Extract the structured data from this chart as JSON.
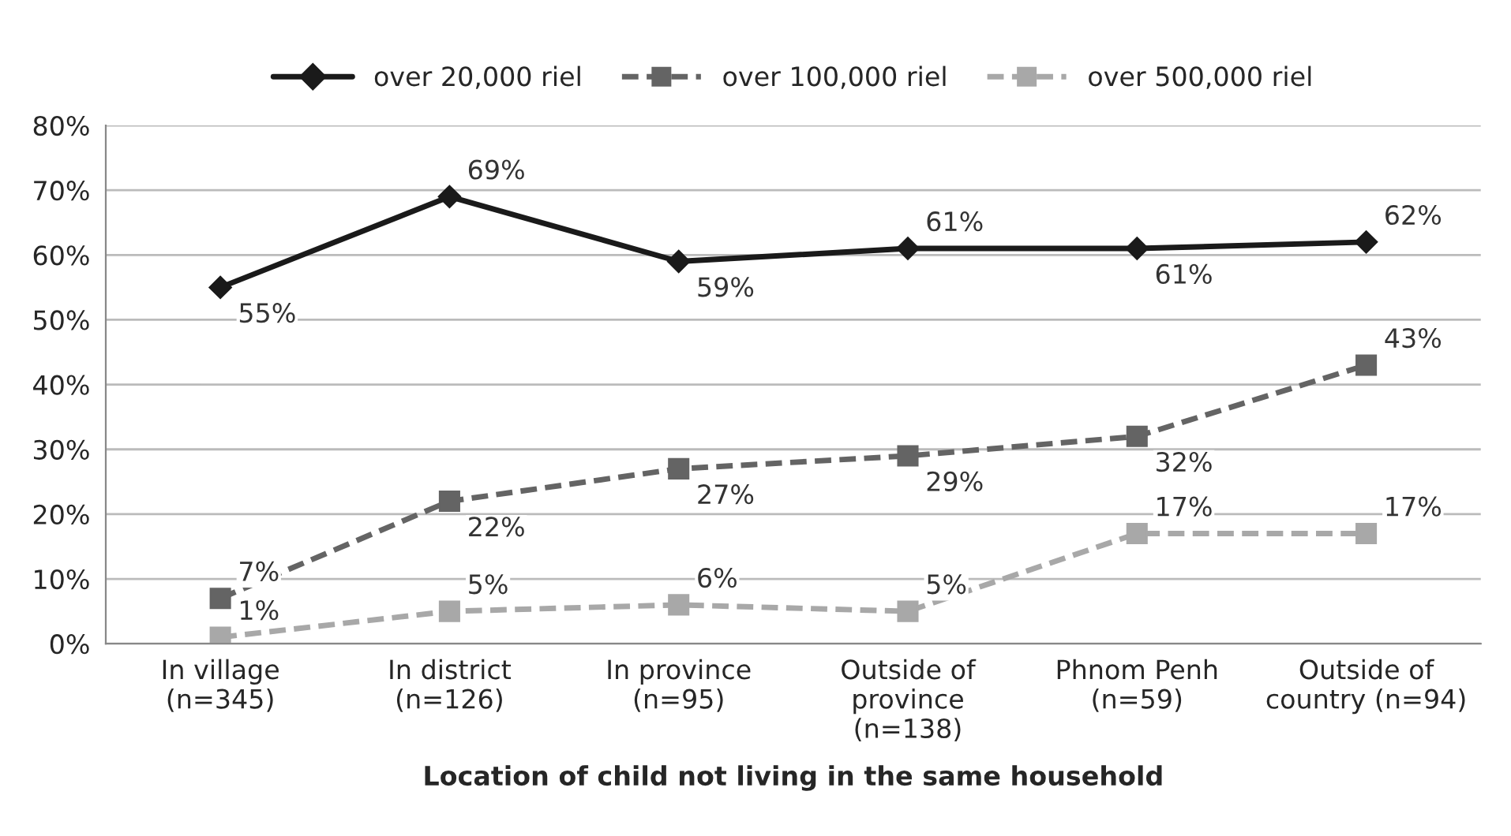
{
  "chart_data": {
    "type": "line",
    "xlabel": "Location of child not living in the same household",
    "categories": [
      "In village\n(n=345)",
      "In district\n(n=126)",
      "In province\n(n=95)",
      "Outside of\nprovince\n(n=138)",
      "Phnom Penh\n(n=59)",
      "Outside of\ncountry (n=94)"
    ],
    "series": [
      {
        "name": "over 20,000 riel",
        "color": "#1a1a1a",
        "marker": "diamond",
        "line_style": "solid",
        "values": [
          55,
          69,
          59,
          61,
          61,
          62
        ],
        "value_labels": [
          "55%",
          "69%",
          "59%",
          "61%",
          "61%",
          "62%"
        ]
      },
      {
        "name": "over 100,000 riel",
        "color": "#646464",
        "marker": "square",
        "line_style": "dashed",
        "values": [
          7,
          22,
          27,
          29,
          32,
          43
        ],
        "value_labels": [
          "7%",
          "22%",
          "27%",
          "29%",
          "32%",
          "43%"
        ]
      },
      {
        "name": "over 500,000 riel",
        "color": "#a8a8a8",
        "marker": "square",
        "line_style": "dashed",
        "values": [
          1,
          5,
          6,
          5,
          17,
          17
        ],
        "value_labels": [
          "1%",
          "5%",
          "6%",
          "5%",
          "17%",
          "17%"
        ]
      }
    ],
    "ylim": [
      0,
      80
    ],
    "yticks": [
      {
        "value": 0,
        "label": "0%"
      },
      {
        "value": 10,
        "label": "10%"
      },
      {
        "value": 20,
        "label": "20%"
      },
      {
        "value": 30,
        "label": "30%"
      },
      {
        "value": 40,
        "label": "40%"
      },
      {
        "value": 50,
        "label": "50%"
      },
      {
        "value": 60,
        "label": "60%"
      },
      {
        "value": 70,
        "label": "70%"
      },
      {
        "value": 80,
        "label": "80%"
      }
    ],
    "grid": "y",
    "legend": "top"
  }
}
